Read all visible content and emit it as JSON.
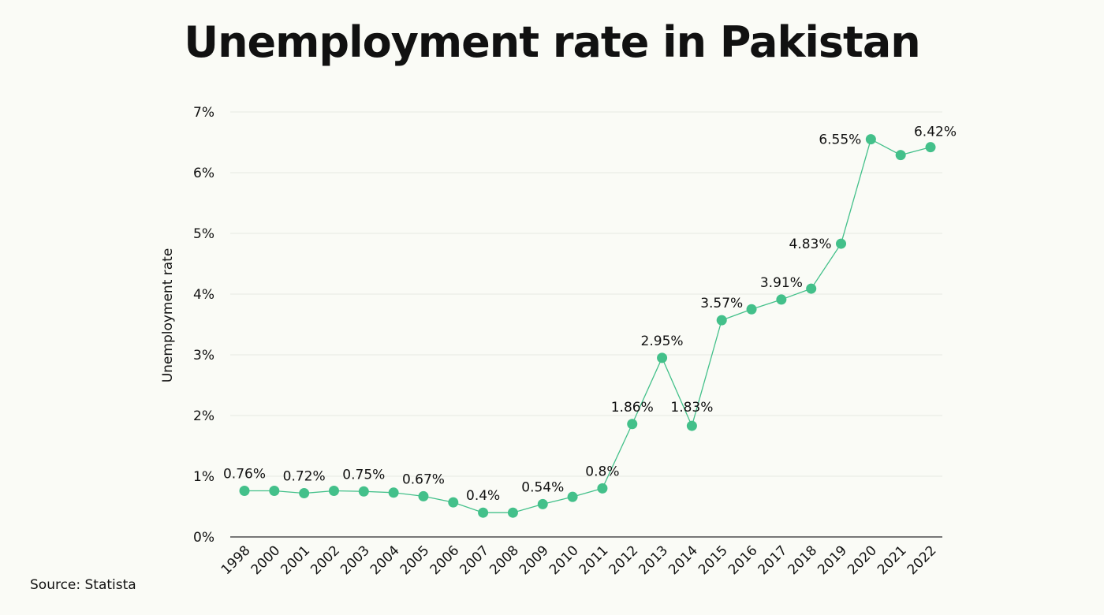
{
  "chart_data": {
    "type": "line",
    "title": "Unemployment rate in Pakistan",
    "ylabel": "Unemployment rate",
    "xlabel": "",
    "ylim": [
      0,
      7
    ],
    "yticks": [
      "0%",
      "1%",
      "2%",
      "3%",
      "4%",
      "5%",
      "6%",
      "7%"
    ],
    "grid": true,
    "color": "#43c08a",
    "categories": [
      "1998",
      "2000",
      "2001",
      "2002",
      "2003",
      "2004",
      "2005",
      "2006",
      "2007",
      "2008",
      "2009",
      "2010",
      "2011",
      "2012",
      "2013",
      "2014",
      "2015",
      "2016",
      "2017",
      "2018",
      "2019",
      "2020",
      "2021",
      "2022"
    ],
    "values": [
      0.76,
      0.76,
      0.72,
      0.76,
      0.75,
      0.73,
      0.67,
      0.57,
      0.4,
      0.4,
      0.54,
      0.66,
      0.8,
      1.86,
      2.95,
      1.83,
      3.57,
      3.75,
      3.91,
      4.09,
      4.83,
      6.55,
      6.29,
      6.42
    ],
    "data_labels": [
      "0.76%",
      null,
      "0.72%",
      null,
      "0.75%",
      null,
      "0.67%",
      null,
      "0.4%",
      null,
      "0.54%",
      null,
      "0.8%",
      "1.86%",
      "2.95%",
      "1.83%",
      "3.57%",
      null,
      "3.91%",
      null,
      "4.83%",
      "6.55%",
      null,
      "6.42%"
    ]
  },
  "source": "Source: Statista"
}
